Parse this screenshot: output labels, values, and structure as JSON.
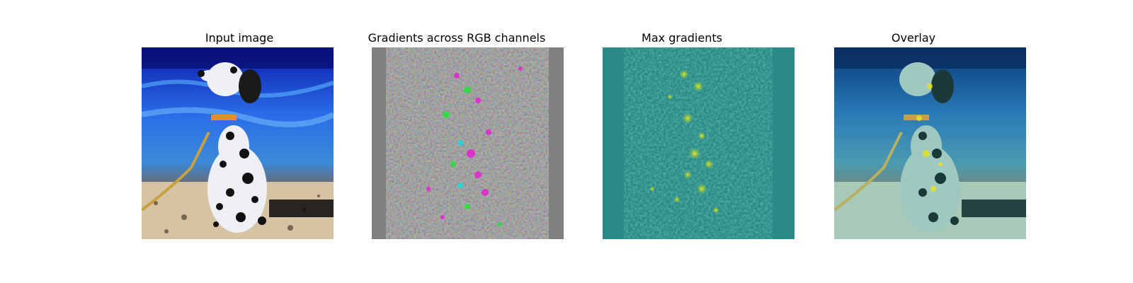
{
  "panels": [
    {
      "title": "Input image",
      "content": "photo-dalmatian-puppy"
    },
    {
      "title": "Gradients across RGB channels",
      "content": "rgb-gradient-noise"
    },
    {
      "title": "Max gradients",
      "content": "max-gradient-heatmap"
    },
    {
      "title": "Overlay",
      "content": "gradient-overlay-on-photo"
    }
  ],
  "colors": {
    "background": "#ffffff",
    "gradient_gray": "#808080",
    "heatmap_teal": "#2a8a86",
    "heatmap_yellow": "#e8e41a",
    "water_blue": "#1a3fc8"
  }
}
